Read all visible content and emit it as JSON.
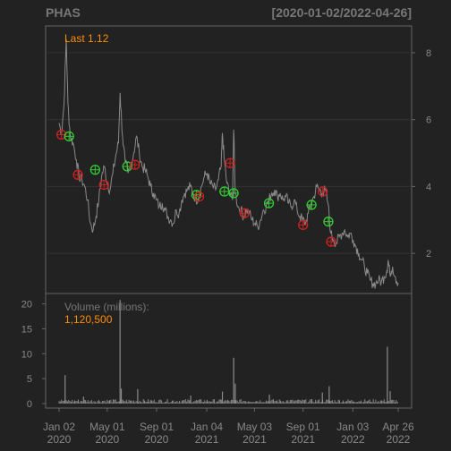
{
  "header": {
    "symbol": "PHAS",
    "date_range": "[2020-01-02/2022-04-26]"
  },
  "price_panel": {
    "last_label": "Last 1.12",
    "y_ticks": [
      2,
      4,
      6,
      8
    ]
  },
  "volume_panel": {
    "label": "Volume (millions):",
    "value": "1,120,500",
    "y_ticks": [
      0,
      5,
      10,
      15,
      20
    ]
  },
  "x_axis": {
    "ticks": [
      {
        "line1": "Jan 02",
        "line2": "2020",
        "date": "2020-01-02"
      },
      {
        "line1": "May 01",
        "line2": "2020",
        "date": "2020-05-01"
      },
      {
        "line1": "Sep 01",
        "line2": "2020",
        "date": "2020-09-01"
      },
      {
        "line1": "Jan 04",
        "line2": "2021",
        "date": "2021-01-04"
      },
      {
        "line1": "May 03",
        "line2": "2021",
        "date": "2021-05-03"
      },
      {
        "line1": "Sep 01",
        "line2": "2021",
        "date": "2021-09-01"
      },
      {
        "line1": "Jan 03",
        "line2": "2022",
        "date": "2022-01-03"
      },
      {
        "line1": "Apr 26",
        "line2": "2022",
        "date": "2022-04-26"
      }
    ]
  },
  "colors": {
    "background": "#222222",
    "price_line": "#8a8a8a",
    "volume": "#8a8a8a",
    "accent": "#ff8c00",
    "buy_marker": "#33cc33",
    "sell_marker": "#cc2222",
    "grid": "#333333",
    "axis_text": "#888888"
  },
  "chart_data": {
    "type": "line",
    "x_range": [
      "2020-01-02",
      "2022-04-26"
    ],
    "price_ylim": [
      0.8,
      8.8
    ],
    "volume_ylim": [
      0,
      21
    ],
    "price_series": [
      [
        "2020-01-02",
        5.9
      ],
      [
        "2020-01-08",
        5.6
      ],
      [
        "2020-01-14",
        6.4
      ],
      [
        "2020-01-20",
        8.4
      ],
      [
        "2020-01-24",
        6.5
      ],
      [
        "2020-01-30",
        5.5
      ],
      [
        "2020-02-06",
        5.3
      ],
      [
        "2020-02-14",
        4.8
      ],
      [
        "2020-02-21",
        4.3
      ],
      [
        "2020-02-28",
        4.2
      ],
      [
        "2020-03-06",
        4.0
      ],
      [
        "2020-03-13",
        3.6
      ],
      [
        "2020-03-20",
        2.9
      ],
      [
        "2020-03-27",
        2.7
      ],
      [
        "2020-04-03",
        3.1
      ],
      [
        "2020-04-10",
        3.6
      ],
      [
        "2020-04-17",
        4.3
      ],
      [
        "2020-04-24",
        4.6
      ],
      [
        "2020-05-01",
        4.1
      ],
      [
        "2020-05-08",
        3.9
      ],
      [
        "2020-05-15",
        4.4
      ],
      [
        "2020-05-22",
        4.9
      ],
      [
        "2020-05-29",
        5.3
      ],
      [
        "2020-06-02",
        6.8
      ],
      [
        "2020-06-08",
        5.5
      ],
      [
        "2020-06-15",
        4.7
      ],
      [
        "2020-06-22",
        4.4
      ],
      [
        "2020-06-29",
        4.6
      ],
      [
        "2020-07-06",
        5.0
      ],
      [
        "2020-07-13",
        5.5
      ],
      [
        "2020-07-20",
        5.0
      ],
      [
        "2020-07-27",
        4.6
      ],
      [
        "2020-08-03",
        4.5
      ],
      [
        "2020-08-10",
        4.3
      ],
      [
        "2020-08-17",
        4.0
      ],
      [
        "2020-08-24",
        3.8
      ],
      [
        "2020-08-31",
        3.6
      ],
      [
        "2020-09-08",
        3.4
      ],
      [
        "2020-09-15",
        3.5
      ],
      [
        "2020-09-22",
        3.3
      ],
      [
        "2020-09-29",
        3.1
      ],
      [
        "2020-10-06",
        3.0
      ],
      [
        "2020-10-13",
        2.9
      ],
      [
        "2020-10-20",
        3.3
      ],
      [
        "2020-10-27",
        3.2
      ],
      [
        "2020-11-03",
        3.6
      ],
      [
        "2020-11-10",
        3.8
      ],
      [
        "2020-11-17",
        3.9
      ],
      [
        "2020-11-24",
        4.0
      ],
      [
        "2020-12-01",
        3.8
      ],
      [
        "2020-12-08",
        3.6
      ],
      [
        "2020-12-15",
        3.7
      ],
      [
        "2020-12-22",
        4.0
      ],
      [
        "2020-12-29",
        4.3
      ],
      [
        "2021-01-05",
        4.4
      ],
      [
        "2021-01-12",
        4.1
      ],
      [
        "2021-01-19",
        4.0
      ],
      [
        "2021-01-26",
        3.9
      ],
      [
        "2021-02-02",
        4.2
      ],
      [
        "2021-02-09",
        4.6
      ],
      [
        "2021-02-12",
        5.6
      ],
      [
        "2021-02-16",
        4.9
      ],
      [
        "2021-02-23",
        4.1
      ],
      [
        "2021-03-02",
        3.8
      ],
      [
        "2021-03-09",
        3.6
      ],
      [
        "2021-03-12",
        5.7
      ],
      [
        "2021-03-16",
        3.8
      ],
      [
        "2021-03-23",
        3.4
      ],
      [
        "2021-03-30",
        3.3
      ],
      [
        "2021-04-06",
        3.1
      ],
      [
        "2021-04-13",
        3.3
      ],
      [
        "2021-04-20",
        3.2
      ],
      [
        "2021-04-27",
        3.0
      ],
      [
        "2021-05-04",
        2.9
      ],
      [
        "2021-05-11",
        2.8
      ],
      [
        "2021-05-18",
        3.0
      ],
      [
        "2021-05-25",
        3.3
      ],
      [
        "2021-06-01",
        3.4
      ],
      [
        "2021-06-08",
        3.6
      ],
      [
        "2021-06-15",
        3.8
      ],
      [
        "2021-06-22",
        3.9
      ],
      [
        "2021-06-29",
        3.7
      ],
      [
        "2021-07-06",
        3.8
      ],
      [
        "2021-07-13",
        3.6
      ],
      [
        "2021-07-20",
        3.7
      ],
      [
        "2021-07-27",
        3.5
      ],
      [
        "2021-08-03",
        3.4
      ],
      [
        "2021-08-10",
        3.6
      ],
      [
        "2021-08-17",
        3.3
      ],
      [
        "2021-08-24",
        3.1
      ],
      [
        "2021-08-31",
        3.0
      ],
      [
        "2021-09-07",
        2.9
      ],
      [
        "2021-09-14",
        3.2
      ],
      [
        "2021-09-21",
        3.5
      ],
      [
        "2021-09-28",
        3.7
      ],
      [
        "2021-10-05",
        4.0
      ],
      [
        "2021-10-12",
        3.9
      ],
      [
        "2021-10-19",
        3.8
      ],
      [
        "2021-10-26",
        3.9
      ],
      [
        "2021-11-02",
        3.5
      ],
      [
        "2021-11-09",
        2.6
      ],
      [
        "2021-11-16",
        2.4
      ],
      [
        "2021-11-23",
        2.3
      ],
      [
        "2021-11-30",
        2.5
      ],
      [
        "2021-12-07",
        2.6
      ],
      [
        "2021-12-14",
        2.7
      ],
      [
        "2021-12-21",
        2.5
      ],
      [
        "2021-12-28",
        2.6
      ],
      [
        "2022-01-04",
        2.4
      ],
      [
        "2022-01-11",
        2.2
      ],
      [
        "2022-01-18",
        2.0
      ],
      [
        "2022-01-25",
        1.8
      ],
      [
        "2022-02-01",
        1.6
      ],
      [
        "2022-02-08",
        1.4
      ],
      [
        "2022-02-15",
        1.2
      ],
      [
        "2022-02-22",
        1.1
      ],
      [
        "2022-03-01",
        1.1
      ],
      [
        "2022-03-08",
        1.2
      ],
      [
        "2022-03-15",
        1.15
      ],
      [
        "2022-03-22",
        1.3
      ],
      [
        "2022-03-29",
        1.5
      ],
      [
        "2022-04-01",
        1.8
      ],
      [
        "2022-04-05",
        1.4
      ],
      [
        "2022-04-12",
        1.6
      ],
      [
        "2022-04-19",
        1.3
      ],
      [
        "2022-04-26",
        1.12
      ]
    ],
    "signals": [
      {
        "date": "2020-01-08",
        "price": 5.55,
        "type": "sell"
      },
      {
        "date": "2020-01-27",
        "price": 5.5,
        "type": "buy"
      },
      {
        "date": "2020-02-18",
        "price": 4.35,
        "type": "sell"
      },
      {
        "date": "2020-04-01",
        "price": 4.5,
        "type": "buy"
      },
      {
        "date": "2020-04-23",
        "price": 4.05,
        "type": "sell"
      },
      {
        "date": "2020-06-20",
        "price": 4.6,
        "type": "buy"
      },
      {
        "date": "2020-07-09",
        "price": 4.65,
        "type": "sell"
      },
      {
        "date": "2020-12-09",
        "price": 3.75,
        "type": "buy"
      },
      {
        "date": "2020-12-16",
        "price": 3.7,
        "type": "sell"
      },
      {
        "date": "2021-02-17",
        "price": 3.85,
        "type": "buy"
      },
      {
        "date": "2021-03-03",
        "price": 4.7,
        "type": "sell"
      },
      {
        "date": "2021-03-12",
        "price": 3.8,
        "type": "buy"
      },
      {
        "date": "2021-04-08",
        "price": 3.2,
        "type": "sell"
      },
      {
        "date": "2021-06-08",
        "price": 3.5,
        "type": "buy"
      },
      {
        "date": "2021-09-01",
        "price": 2.85,
        "type": "sell"
      },
      {
        "date": "2021-09-22",
        "price": 3.45,
        "type": "buy"
      },
      {
        "date": "2021-10-20",
        "price": 3.85,
        "type": "sell"
      },
      {
        "date": "2021-11-03",
        "price": 2.95,
        "type": "buy"
      },
      {
        "date": "2021-11-10",
        "price": 2.35,
        "type": "sell"
      }
    ],
    "volume_spikes": [
      [
        "2020-01-17",
        5.7
      ],
      [
        "2020-03-03",
        1.4
      ],
      [
        "2020-06-02",
        20.8
      ],
      [
        "2020-06-05",
        3.0
      ],
      [
        "2020-07-16",
        2.9
      ],
      [
        "2020-11-25",
        1.6
      ],
      [
        "2021-02-12",
        2.4
      ],
      [
        "2021-03-12",
        9.2
      ],
      [
        "2021-03-16",
        4.0
      ],
      [
        "2021-06-09",
        1.8
      ],
      [
        "2021-10-19",
        2.2
      ],
      [
        "2021-11-05",
        3.5
      ],
      [
        "2022-03-30",
        11.4
      ],
      [
        "2022-04-06",
        2.5
      ]
    ],
    "volume_baseline": 0.5
  }
}
